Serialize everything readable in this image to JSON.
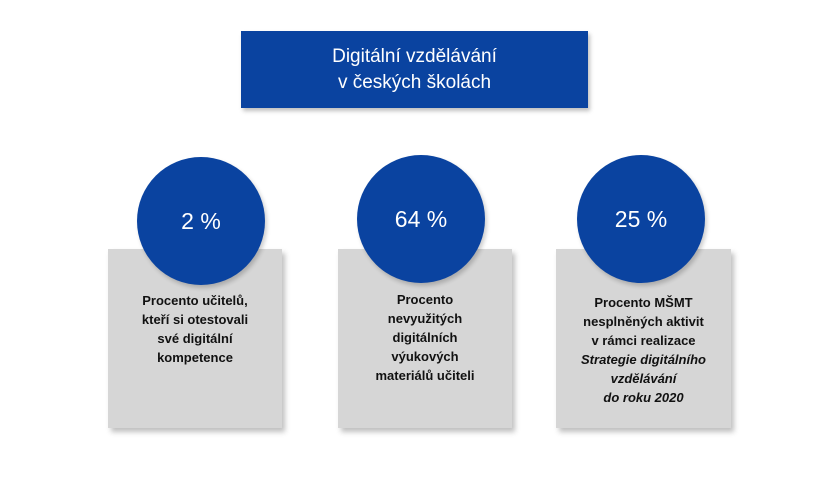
{
  "title": {
    "line1": "Digitální vzdělávání",
    "line2": "v českých školách"
  },
  "colors": {
    "primary_blue": "#0a43a0",
    "card_gray": "#d6d6d6"
  },
  "stats": [
    {
      "value": "2 %",
      "description_lines": [
        "Procento učitelů,",
        "kteří si otestovali",
        "své digitální",
        "kompetence"
      ]
    },
    {
      "value": "64 %",
      "description_lines": [
        "Procento",
        "nevyužitých",
        "digitálních",
        "výukových",
        "materiálů učiteli"
      ]
    },
    {
      "value": "25 %",
      "description_lines": [
        "Procento MŠMT",
        "nesplněných aktivit",
        "v rámci realizace"
      ],
      "description_italic_lines": [
        "Strategie digitálního",
        "vzdělávání",
        "do roku 2020"
      ]
    }
  ]
}
